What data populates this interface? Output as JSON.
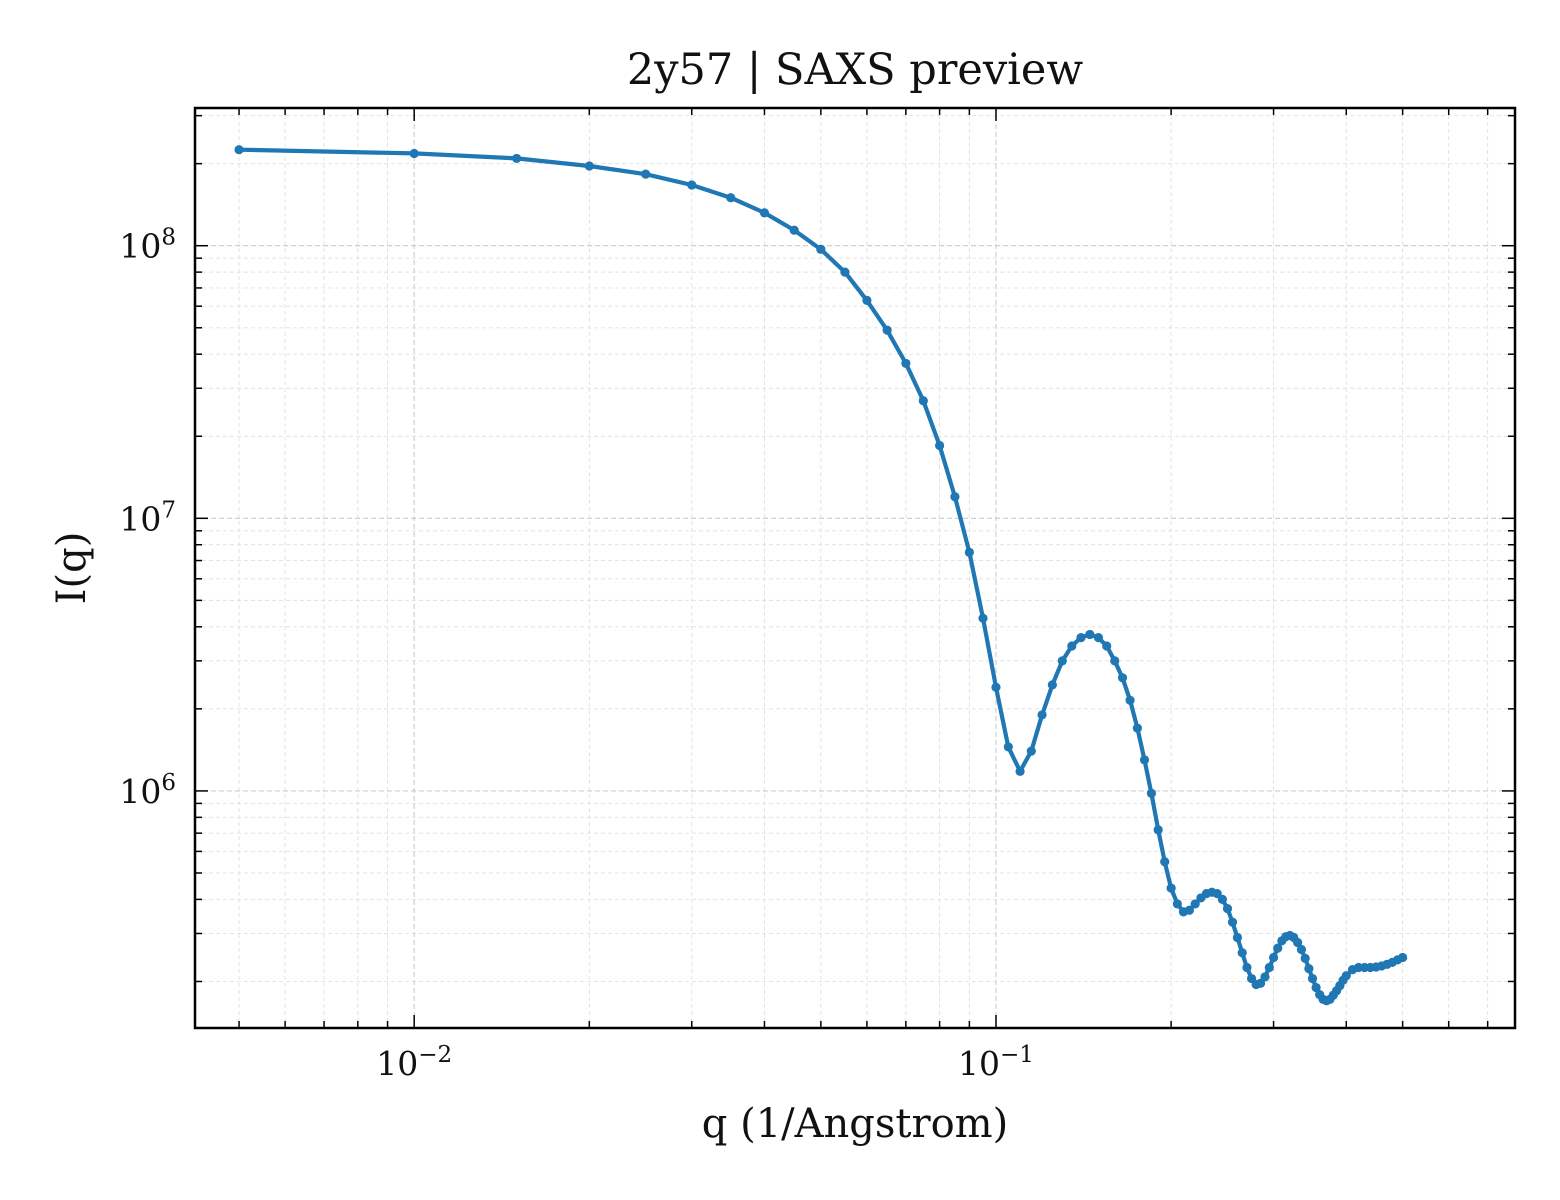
{
  "chart_data": {
    "type": "line",
    "title": "2y57 | SAXS preview",
    "xlabel": "q (1/Angstrom)",
    "ylabel": "I(q)",
    "xscale": "log",
    "yscale": "log",
    "xlim": [
      0.0042,
      0.78
    ],
    "ylim": [
      135000,
      320000000
    ],
    "xticks": [
      {
        "value": 0.01,
        "base": "10",
        "exp": "−2"
      },
      {
        "value": 0.1,
        "base": "10",
        "exp": "−1"
      }
    ],
    "yticks": [
      {
        "value": 1000000,
        "base": "10",
        "exp": "6"
      },
      {
        "value": 10000000,
        "base": "10",
        "exp": "7"
      },
      {
        "value": 100000000,
        "base": "10",
        "exp": "8"
      }
    ],
    "grid": true,
    "color": "#1f77b4",
    "series": [
      {
        "x": [
          0.005,
          0.01,
          0.015,
          0.02,
          0.025,
          0.03,
          0.035,
          0.04,
          0.045,
          0.05,
          0.055,
          0.06,
          0.065,
          0.07,
          0.075,
          0.08,
          0.085,
          0.09,
          0.095,
          0.1,
          0.105,
          0.11,
          0.115,
          0.12,
          0.125,
          0.13,
          0.135,
          0.14,
          0.145,
          0.15,
          0.155,
          0.16,
          0.165,
          0.17,
          0.175,
          0.18,
          0.185,
          0.19,
          0.195,
          0.2,
          0.205,
          0.21,
          0.215,
          0.22,
          0.225,
          0.23,
          0.235,
          0.24,
          0.245,
          0.25,
          0.255,
          0.26,
          0.265,
          0.27,
          0.275,
          0.28,
          0.285,
          0.29,
          0.295,
          0.3,
          0.305,
          0.31,
          0.315,
          0.32,
          0.325,
          0.33,
          0.335,
          0.34,
          0.345,
          0.35,
          0.355,
          0.36,
          0.365,
          0.37,
          0.375,
          0.38,
          0.385,
          0.39,
          0.395,
          0.4,
          0.41,
          0.42,
          0.43,
          0.44,
          0.45,
          0.46,
          0.47,
          0.48,
          0.49,
          0.5
        ],
        "y": [
          225000000,
          218000000,
          209000000,
          196000000,
          183000000,
          167000000,
          150000000,
          132000000,
          114000000,
          97000000,
          80000000,
          63000000,
          49000000,
          37000000,
          27000000,
          18500000,
          12000000,
          7500000,
          4300000,
          2400000,
          1450000,
          1180000,
          1400000,
          1900000,
          2450000,
          3000000,
          3400000,
          3650000,
          3750000,
          3650000,
          3400000,
          3000000,
          2600000,
          2150000,
          1700000,
          1300000,
          980000,
          720000,
          550000,
          440000,
          385000,
          360000,
          365000,
          385000,
          405000,
          420000,
          425000,
          420000,
          400000,
          370000,
          330000,
          290000,
          255000,
          225000,
          205000,
          195000,
          197000,
          208000,
          225000,
          245000,
          265000,
          282000,
          292000,
          295000,
          290000,
          278000,
          262000,
          243000,
          223000,
          205000,
          190000,
          179000,
          172000,
          170000,
          172000,
          178000,
          185000,
          193000,
          202000,
          210000,
          221000,
          225000,
          225000,
          225000,
          226000,
          228000,
          231000,
          235000,
          240000,
          245000
        ]
      }
    ]
  }
}
